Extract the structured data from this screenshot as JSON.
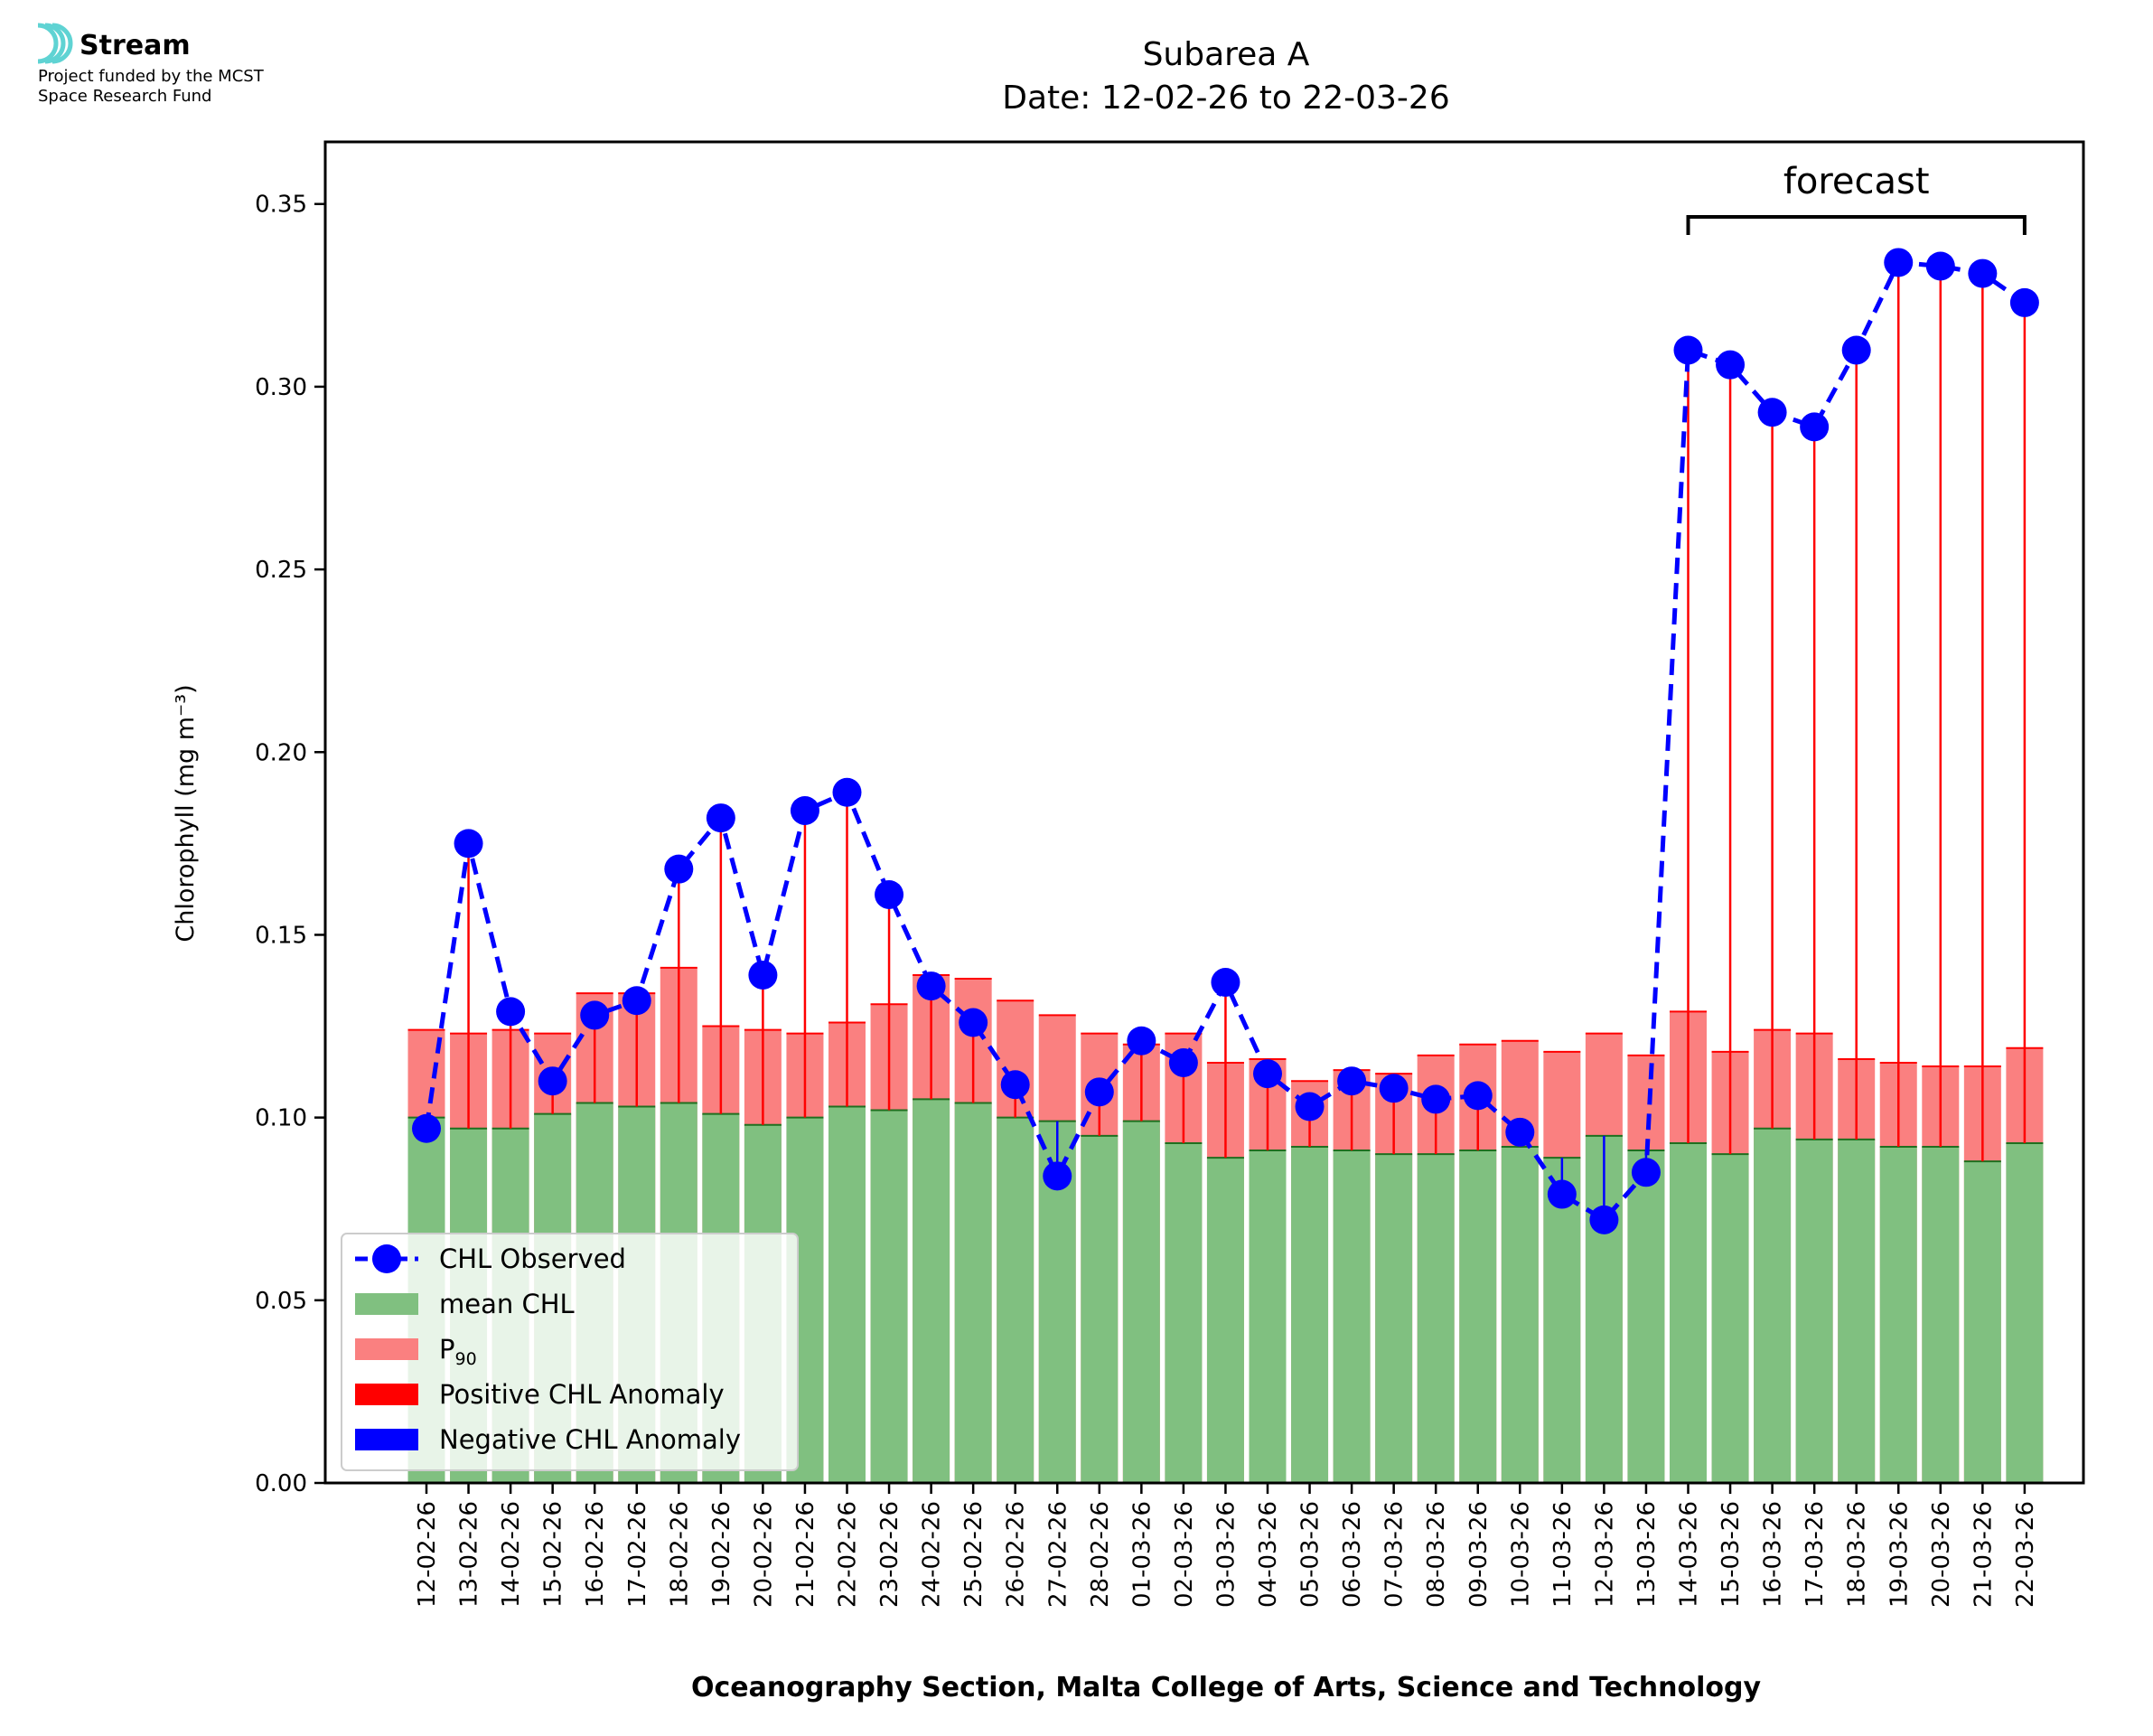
{
  "logo": {
    "name": "Stream",
    "line1": "Project funded by the MCST",
    "line2": "Space Research Fund",
    "icon": "stream-waves-icon",
    "icon_color": "#5fd3d3"
  },
  "chart_data": {
    "type": "bar",
    "title": "Subarea A",
    "subtitle": "Date: 12-02-26 to 22-03-26",
    "xlabel": "Oceanography Section, Malta College of Arts, Science and Technology",
    "ylabel": "Chlorophyll (mg m⁻³)",
    "ylim": [
      0,
      0.367
    ],
    "yticks": [
      "0.00",
      "0.05",
      "0.10",
      "0.15",
      "0.20",
      "0.25",
      "0.30",
      "0.35"
    ],
    "grid": false,
    "legend_position": "lower-left",
    "annotation": {
      "text": "forecast",
      "from": "14-03-26",
      "to": "22-03-26"
    },
    "categories": [
      "12-02-26",
      "13-02-26",
      "14-02-26",
      "15-02-26",
      "16-02-26",
      "17-02-26",
      "18-02-26",
      "19-02-26",
      "20-02-26",
      "21-02-26",
      "22-02-26",
      "23-02-26",
      "24-02-26",
      "25-02-26",
      "26-02-26",
      "27-02-26",
      "28-02-26",
      "01-03-26",
      "02-03-26",
      "03-03-26",
      "04-03-26",
      "05-03-26",
      "06-03-26",
      "07-03-26",
      "08-03-26",
      "09-03-26",
      "10-03-26",
      "11-03-26",
      "12-03-26",
      "13-03-26",
      "14-03-26",
      "15-03-26",
      "16-03-26",
      "17-03-26",
      "18-03-26",
      "19-03-26",
      "20-03-26",
      "21-03-26",
      "22-03-26"
    ],
    "series": [
      {
        "name": "CHL Observed",
        "style": "dashed-line-markers",
        "color": "#0000ff",
        "values": [
          0.097,
          0.175,
          0.129,
          0.11,
          0.128,
          0.132,
          0.168,
          0.182,
          0.139,
          0.184,
          0.189,
          0.161,
          0.136,
          0.126,
          0.109,
          0.084,
          0.107,
          0.121,
          0.115,
          0.137,
          0.112,
          0.103,
          0.11,
          0.108,
          0.105,
          0.106,
          0.096,
          0.079,
          0.072,
          0.085,
          0.31,
          0.306,
          0.293,
          0.289,
          0.31,
          0.334,
          0.333,
          0.331,
          0.323
        ]
      },
      {
        "name": "mean CHL",
        "style": "bar",
        "color": "#80c080",
        "values": [
          0.1,
          0.097,
          0.097,
          0.101,
          0.104,
          0.103,
          0.104,
          0.101,
          0.098,
          0.1,
          0.103,
          0.102,
          0.105,
          0.104,
          0.1,
          0.099,
          0.095,
          0.099,
          0.093,
          0.089,
          0.091,
          0.092,
          0.091,
          0.09,
          0.09,
          0.091,
          0.092,
          0.089,
          0.095,
          0.091,
          0.093,
          0.09,
          0.097,
          0.094,
          0.094,
          0.092,
          0.092,
          0.088,
          0.093
        ]
      },
      {
        "name": "P90",
        "style": "bar",
        "color": "#fa8080",
        "values": [
          0.124,
          0.123,
          0.124,
          0.123,
          0.134,
          0.134,
          0.141,
          0.125,
          0.124,
          0.123,
          0.126,
          0.131,
          0.139,
          0.138,
          0.132,
          0.128,
          0.123,
          0.12,
          0.123,
          0.115,
          0.116,
          0.11,
          0.113,
          0.112,
          0.117,
          0.12,
          0.121,
          0.118,
          0.123,
          0.117,
          0.129,
          0.118,
          0.124,
          0.123,
          0.116,
          0.115,
          0.114,
          0.114,
          0.119
        ]
      }
    ],
    "legend": [
      {
        "label": "CHL Observed",
        "kind": "line",
        "color": "#0000ff"
      },
      {
        "label": "mean CHL",
        "kind": "patch",
        "color": "#80c080"
      },
      {
        "label": "P",
        "sub": "90",
        "kind": "patch",
        "color": "#fa8080"
      },
      {
        "label": "Positive CHL Anomaly",
        "kind": "patch",
        "color": "#ff0000"
      },
      {
        "label": "Negative CHL Anomaly",
        "kind": "patch",
        "color": "#0000ff"
      }
    ]
  }
}
